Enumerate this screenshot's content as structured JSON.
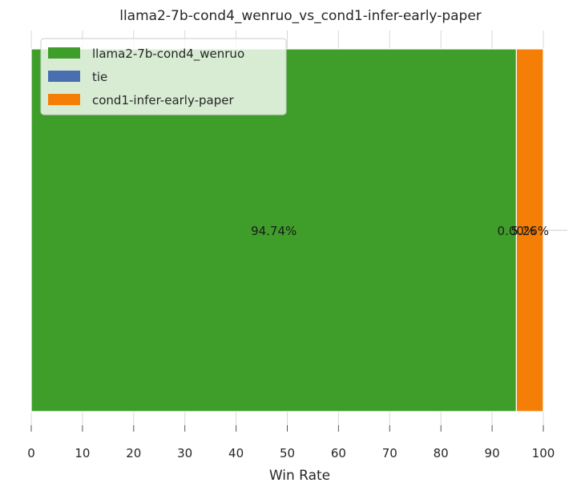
{
  "chart_data": {
    "type": "bar",
    "orientation": "horizontal-stacked",
    "title": "llama2-7b-cond4_wenruo_vs_cond1-infer-early-paper",
    "xlabel": "Win Rate",
    "ylabel": "",
    "xlim": [
      0,
      100
    ],
    "xticks": [
      "0",
      "10",
      "20",
      "30",
      "40",
      "50",
      "60",
      "70",
      "80",
      "90",
      "100"
    ],
    "grid": true,
    "legend": "top-left",
    "series": [
      {
        "name": "llama2-7b-cond4_wenruo",
        "value": 94.74,
        "label": "94.74%",
        "color": "#3f9e2a"
      },
      {
        "name": "tie",
        "value": 0.0,
        "label": "0.00%",
        "color": "#4a6fb0"
      },
      {
        "name": "cond1-infer-early-paper",
        "value": 5.26,
        "label": "5.26%",
        "color": "#f57f06"
      }
    ]
  }
}
